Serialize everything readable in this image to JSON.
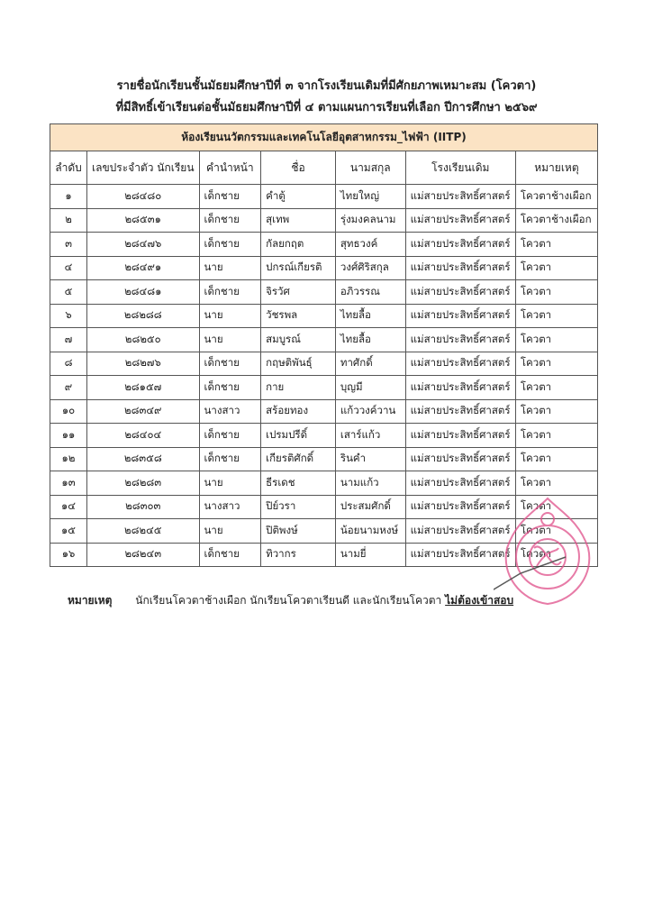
{
  "title_line1": "รายชื่อนักเรียนชั้นมัธยมศึกษาปีที่ ๓ จากโรงเรียนเดิมที่มีศักยภาพเหมาะสม (โควตา)",
  "title_line2": "ที่มีสิทธิ์เข้าเรียนต่อชั้นมัธยมศึกษาปีที่ ๔ ตามแผนการเรียนที่เลือก ปีการศึกษา ๒๕๖๙",
  "table": {
    "caption": "ห้องเรียนนวัตกรรมและเทคโนโลยีอุตสาหกรรม_ไฟฟ้า (IITP)",
    "headers": [
      "ลำดับ",
      "เลขประจำตัว นักเรียน",
      "คำนำหน้า",
      "ชื่อ",
      "นามสกุล",
      "โรงเรียนเดิม",
      "หมายเหตุ"
    ],
    "rows": [
      [
        "๑",
        "๒๘๔๘๐",
        "เด็กชาย",
        "คำตู้",
        "ไทยใหญ่",
        "แม่สายประสิทธิ์ศาสตร์",
        "โควตาช้างเผือก"
      ],
      [
        "๒",
        "๒๘๕๓๑",
        "เด็กชาย",
        "สุเทพ",
        "รุ่งมงคลนาม",
        "แม่สายประสิทธิ์ศาสตร์",
        "โควตาช้างเผือก"
      ],
      [
        "๓",
        "๒๘๔๗๖",
        "เด็กชาย",
        "กัลยกฤต",
        "สุทธวงค์",
        "แม่สายประสิทธิ์ศาสตร์",
        "โควตา"
      ],
      [
        "๔",
        "๒๘๔๙๑",
        "นาย",
        "ปกรณ์เกียรติ",
        "วงศ์ศิริสกุล",
        "แม่สายประสิทธิ์ศาสตร์",
        "โควตา"
      ],
      [
        "๕",
        "๒๘๔๘๑",
        "เด็กชาย",
        "จิรวัศ",
        "อภิวรรณ",
        "แม่สายประสิทธิ์ศาสตร์",
        "โควตา"
      ],
      [
        "๖",
        "๒๘๒๘๘",
        "นาย",
        "วัชรพล",
        "ไทยลื้อ",
        "แม่สายประสิทธิ์ศาสตร์",
        "โควตา"
      ],
      [
        "๗",
        "๒๘๒๕๐",
        "นาย",
        "สมบูรณ์",
        "ไทยลื้อ",
        "แม่สายประสิทธิ์ศาสตร์",
        "โควตา"
      ],
      [
        "๘",
        "๒๘๒๗๖",
        "เด็กชาย",
        "กฤษติพันธุ์",
        "ทาศักดิ์",
        "แม่สายประสิทธิ์ศาสตร์",
        "โควตา"
      ],
      [
        "๙",
        "๒๘๑๕๗",
        "เด็กชาย",
        "กาย",
        "บุญมี",
        "แม่สายประสิทธิ์ศาสตร์",
        "โควตา"
      ],
      [
        "๑๐",
        "๒๘๓๔๙",
        "นางสาว",
        "สร้อยทอง",
        "แก้ววงค์วาน",
        "แม่สายประสิทธิ์ศาสตร์",
        "โควตา"
      ],
      [
        "๑๑",
        "๒๘๔๐๔",
        "เด็กชาย",
        "เปรมปรีดิ์",
        "เสาร์แก้ว",
        "แม่สายประสิทธิ์ศาสตร์",
        "โควตา"
      ],
      [
        "๑๒",
        "๒๘๓๕๘",
        "เด็กชาย",
        "เกียรติศักดิ์",
        "รินคำ",
        "แม่สายประสิทธิ์ศาสตร์",
        "โควตา"
      ],
      [
        "๑๓",
        "๒๘๒๘๓",
        "นาย",
        "ธีรเดช",
        "นามแก้ว",
        "แม่สายประสิทธิ์ศาสตร์",
        "โควตา"
      ],
      [
        "๑๔",
        "๒๘๓๐๓",
        "นางสาว",
        "ปิย์วรา",
        "ประสมศักดิ์",
        "แม่สายประสิทธิ์ศาสตร์",
        "โควตา"
      ],
      [
        "๑๕",
        "๒๘๒๔๕",
        "นาย",
        "ปิติพงษ์",
        "น้อยนามหงษ์",
        "แม่สายประสิทธิ์ศาสตร์",
        "โควตา"
      ],
      [
        "๑๖",
        "๒๘๒๔๓",
        "เด็กชาย",
        "ทิวากร",
        "นามยี่",
        "แม่สายประสิทธิ์ศาสตร์",
        "โควตา"
      ]
    ]
  },
  "note": {
    "label": "หมายเหตุ",
    "text": "นักเรียนโควตาช้างเผือก นักเรียนโควตาเรียนดี และนักเรียนโควตา",
    "emphasis": "ไม่ต้องเข้าสอบ"
  },
  "seal": {
    "text": "โรงเรียนแม่สายประสิทธิ์ศาสตร์",
    "color": "#e0508a"
  },
  "colors": {
    "caption_bg": "#fbe3c4"
  }
}
